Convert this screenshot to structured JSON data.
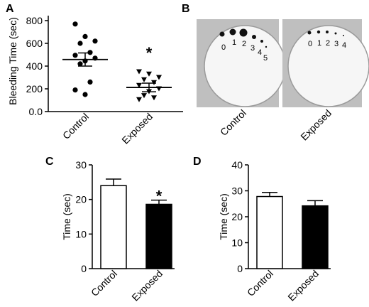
{
  "panels": {
    "a": "A",
    "b": "B",
    "c": "C",
    "d": "D"
  },
  "chart_data": [
    {
      "id": "A",
      "type": "scatter",
      "ylabel": "Bleeding Time (sec)",
      "ylim": [
        0,
        800
      ],
      "yticks": [
        "0.0",
        "200",
        "400",
        "600",
        "800"
      ],
      "yticks_values": [
        0,
        200,
        400,
        600,
        800
      ],
      "categories": [
        "Control",
        "Exposed"
      ],
      "groups": [
        {
          "name": "Control",
          "marker": "circle",
          "points": [
            770,
            660,
            620,
            600,
            520,
            495,
            470,
            445,
            420,
            260,
            190,
            150
          ],
          "mean": 458,
          "sem": 58
        },
        {
          "name": "Exposed",
          "marker": "triangle-down",
          "points": [
            350,
            330,
            300,
            280,
            255,
            230,
            200,
            175,
            140,
            120,
            105
          ],
          "mean": 212,
          "sem": 38
        }
      ],
      "annotations": [
        {
          "text": "*",
          "category": "Exposed",
          "y": 530
        }
      ]
    },
    {
      "id": "C",
      "type": "bar",
      "ylabel": "Time (sec)",
      "ylim": [
        0,
        30
      ],
      "yticks": [
        "0",
        "10",
        "20",
        "30"
      ],
      "yticks_values": [
        0,
        10,
        20,
        30
      ],
      "categories": [
        "Control",
        "Exposed"
      ],
      "values": [
        24.0,
        18.6
      ],
      "errors": [
        1.9,
        1.2
      ],
      "fills": [
        "#ffffff",
        "#000000"
      ],
      "annotations": [
        {
          "text": "*",
          "category": "Exposed",
          "y": 21.5
        }
      ]
    },
    {
      "id": "D",
      "type": "bar",
      "ylabel": "Time (sec)",
      "ylim": [
        0,
        40
      ],
      "yticks": [
        "0",
        "10",
        "20",
        "30",
        "40"
      ],
      "yticks_values": [
        0,
        10,
        20,
        30,
        40
      ],
      "categories": [
        "Control",
        "Exposed"
      ],
      "values": [
        27.8,
        24.2
      ],
      "errors": [
        1.6,
        2.0
      ],
      "fills": [
        "#ffffff",
        "#000000"
      ]
    }
  ],
  "filter_papers": {
    "captions": [
      "Control",
      "Exposed"
    ],
    "control_numbers": [
      "0",
      "1",
      "2",
      "3",
      "4",
      "5"
    ],
    "exposed_numbers": [
      "0",
      "1",
      "2",
      "3",
      "4"
    ]
  }
}
